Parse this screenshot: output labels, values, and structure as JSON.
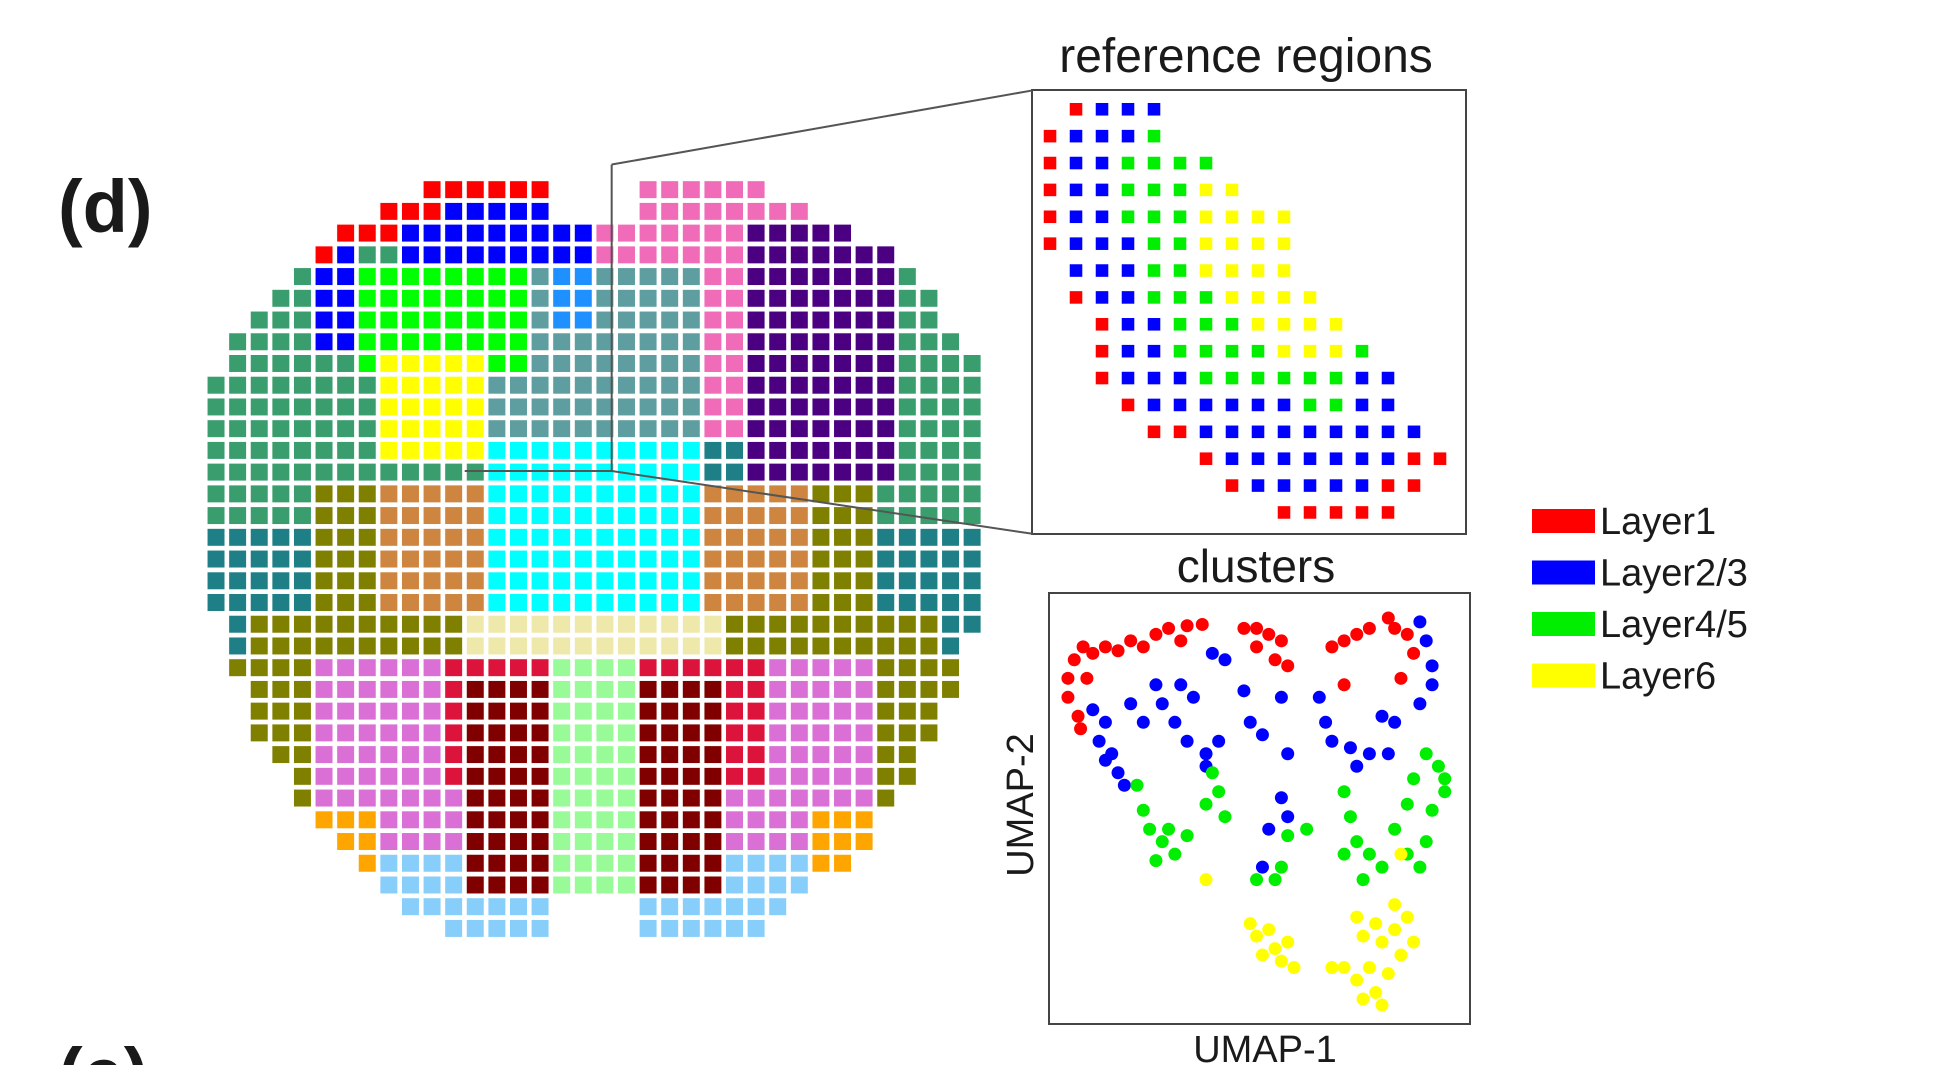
{
  "panel_labels": [
    "(d)",
    "(e)"
  ],
  "reference_title": "reference regions",
  "chart_data": {
    "type": "scatter",
    "title": "clusters",
    "xlabel": "UMAP-1",
    "ylabel": "UMAP-2",
    "xlim": [
      0,
      100
    ],
    "ylim": [
      0,
      100
    ],
    "series": [
      {
        "name": "Layer1",
        "color": "#ff0000",
        "x": [
          4.5,
          6.0,
          8.1,
          10.4,
          13.4,
          16.4,
          19.4,
          22.4,
          25.4,
          28.4,
          32.8,
          36.4,
          4.5,
          6.9,
          7.5,
          46.3,
          49.3,
          52.2,
          55.2,
          53.7,
          56.7,
          49.3,
          67.2,
          70.1,
          73.1,
          76.1,
          80.6,
          82.1,
          85.1,
          86.6,
          83.6,
          70.1,
          31.3,
          9.0
        ],
        "y": [
          80.2,
          84.5,
          87.5,
          86.0,
          87.5,
          86.6,
          88.9,
          87.5,
          90.4,
          91.8,
          92.4,
          92.7,
          75.8,
          71.4,
          68.5,
          91.8,
          91.8,
          90.4,
          88.9,
          84.5,
          83.1,
          87.5,
          87.5,
          88.9,
          90.4,
          91.8,
          94.2,
          91.8,
          90.4,
          86.0,
          80.2,
          78.7,
          88.9,
          80.2
        ]
      },
      {
        "name": "Layer2/3",
        "color": "#0000ff",
        "x": [
          10.4,
          13.4,
          11.9,
          14.9,
          16.4,
          17.9,
          13.4,
          19.4,
          22.4,
          25.4,
          26.9,
          29.9,
          31.3,
          34.3,
          38.8,
          41.8,
          32.8,
          37.3,
          40.3,
          46.3,
          47.8,
          50.7,
          55.2,
          56.7,
          55.2,
          56.7,
          52.2,
          50.7,
          64.2,
          65.7,
          67.2,
          71.6,
          73.1,
          76.1,
          79.1,
          82.1,
          80.6,
          88.1,
          89.6,
          91.0,
          91.0,
          88.1,
          37.3
        ],
        "y": [
          72.9,
          70.0,
          65.6,
          62.7,
          58.3,
          55.4,
          61.2,
          74.3,
          70.0,
          78.7,
          74.3,
          70.0,
          78.7,
          75.8,
          86.0,
          84.5,
          65.6,
          62.7,
          65.6,
          77.3,
          70.0,
          67.1,
          75.8,
          62.7,
          52.5,
          48.1,
          45.2,
          36.4,
          75.8,
          70.0,
          65.6,
          64.1,
          59.8,
          62.7,
          71.4,
          70.0,
          62.7,
          93.3,
          88.9,
          83.1,
          78.7,
          74.3,
          59.8
        ]
      },
      {
        "name": "Layer4/5",
        "color": "#00ee00",
        "x": [
          20.9,
          22.4,
          23.9,
          26.9,
          25.4,
          29.9,
          28.4,
          32.8,
          38.8,
          40.3,
          37.3,
          41.8,
          56.7,
          55.2,
          49.3,
          53.7,
          61.2,
          70.1,
          71.6,
          73.1,
          70.1,
          76.1,
          74.6,
          79.1,
          82.1,
          85.1,
          86.6,
          89.6,
          92.5,
          94.0,
          91.0,
          89.6,
          85.1,
          88.1,
          94.0
        ],
        "y": [
          55.4,
          49.6,
          45.2,
          42.3,
          37.9,
          39.4,
          45.2,
          43.7,
          58.3,
          53.9,
          51.0,
          48.1,
          43.7,
          36.4,
          33.5,
          33.5,
          45.2,
          53.9,
          48.1,
          42.3,
          39.4,
          39.4,
          33.5,
          36.4,
          45.2,
          51.0,
          56.9,
          62.7,
          59.8,
          53.9,
          49.6,
          42.3,
          39.4,
          36.4,
          56.9
        ]
      },
      {
        "name": "Layer6",
        "color": "#ffff00",
        "x": [
          37.3,
          47.8,
          49.3,
          52.2,
          53.7,
          55.2,
          56.7,
          58.2,
          50.7,
          73.1,
          74.6,
          77.6,
          79.1,
          82.1,
          85.1,
          83.6,
          80.6,
          76.1,
          73.1,
          70.1,
          77.6,
          79.1,
          74.6,
          82.1,
          86.6,
          83.6,
          67.2
        ],
        "y": [
          33.5,
          23.3,
          20.4,
          21.9,
          17.5,
          14.6,
          19.0,
          13.1,
          16.0,
          24.8,
          20.4,
          23.3,
          19.0,
          21.9,
          24.8,
          16.0,
          11.7,
          13.1,
          10.2,
          13.1,
          7.3,
          4.4,
          5.8,
          27.7,
          19.0,
          39.4,
          13.1
        ]
      }
    ]
  }
}
